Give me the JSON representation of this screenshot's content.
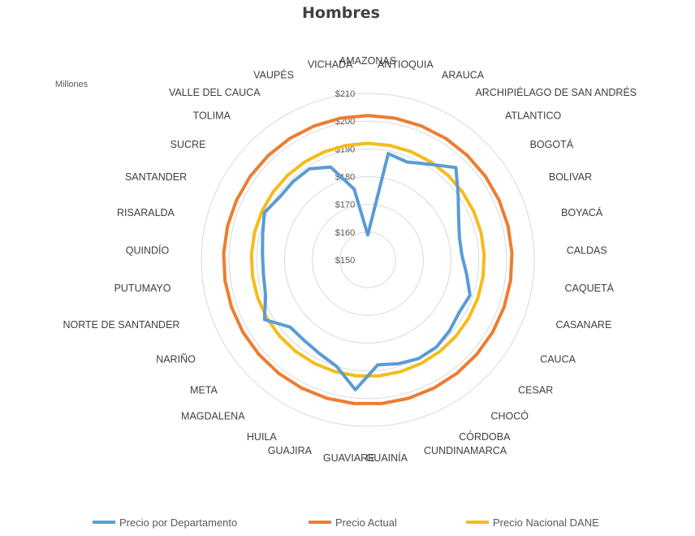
{
  "chart_data": {
    "type": "radar",
    "title": "Hombres",
    "units_label": "Millones",
    "r_range": [
      150,
      210
    ],
    "tick_labels": [
      "$150",
      "$160",
      "$170",
      "$180",
      "$190",
      "$200",
      "$210"
    ],
    "tick_values": [
      150,
      160,
      170,
      180,
      190,
      200,
      210
    ],
    "grid": true,
    "legend_position": "bottom",
    "categories": [
      "AMAZONAS",
      "ANTIOQUIA",
      "ARAUCA",
      "ARCHIPIÉLAGO DE SAN ANDRÉS",
      "ATLANTICO",
      "BOGOTÁ",
      "BOLIVAR",
      "BOYACÁ",
      "CALDAS",
      "CAQUETÁ",
      "CASANARE",
      "CAUCA",
      "CESAR",
      "CHOCÓ",
      "CÓRDOBA",
      "CUNDINAMARCA",
      "GUAINÍA",
      "GUAVIARE",
      "GUAJIRA",
      "HUILA",
      "MAGDALENA",
      "META",
      "NARIÑO",
      "NORTE DE SANTANDER",
      "PUTUMAYO",
      "QUINDÍO",
      "RISARALDA",
      "SANTANDER",
      "SUCRE",
      "TOLIMA",
      "VALLE DEL CAUCA",
      "VAUPÉS",
      "VICHADA"
    ],
    "series": [
      {
        "name": "Precio por Departamento",
        "color": "#5B9BD5",
        "values": [
          159,
          189,
          188,
          191,
          196,
          190,
          186,
          184,
          184,
          186,
          189,
          188,
          189,
          190,
          190,
          189,
          188,
          197,
          190,
          188,
          187,
          187,
          193,
          189,
          188,
          188,
          189,
          191,
          189,
          189,
          189,
          186,
          176
        ]
      },
      {
        "name": "Precio Actual",
        "color": "#ED7D31",
        "values": [
          202,
          202,
          202,
          202,
          202,
          202,
          202,
          202,
          202,
          202,
          202,
          202,
          202,
          202,
          202,
          202,
          202,
          202,
          202,
          202,
          202,
          202,
          202,
          202,
          202,
          202,
          202,
          202,
          202,
          202,
          202,
          202,
          202
        ]
      },
      {
        "name": "Precio Nacional DANE",
        "color": "#F4BC1C",
        "values": [
          192,
          192,
          192,
          192,
          192,
          192,
          192,
          192,
          192,
          192,
          192,
          192,
          192,
          192,
          192,
          192,
          192,
          192,
          192,
          192,
          192,
          192,
          192,
          192,
          192,
          192,
          192,
          192,
          192,
          192,
          192,
          192,
          192
        ]
      }
    ]
  }
}
